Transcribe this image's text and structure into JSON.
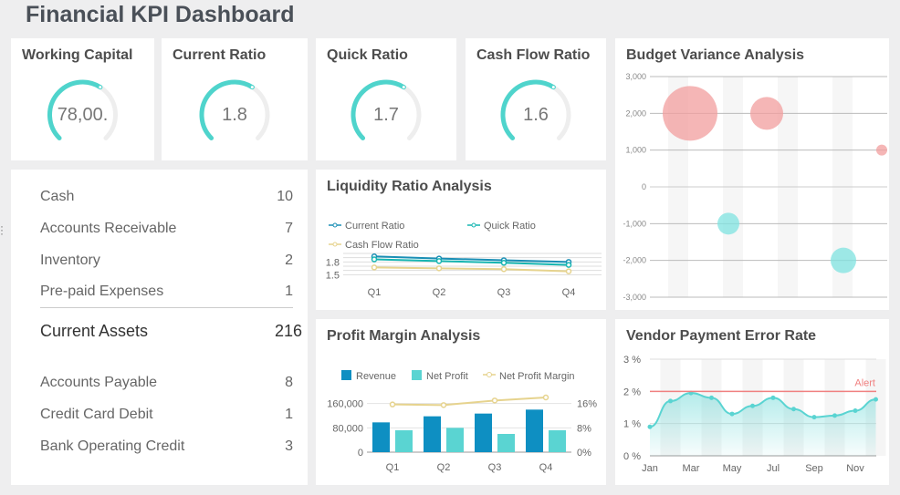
{
  "dashboard": {
    "title": "Financial KPI Dashboard"
  },
  "gauges": [
    {
      "title": "Working Capital",
      "value": "78,00.",
      "fill": 0.62
    },
    {
      "title": "Current Ratio",
      "value": "1.8",
      "fill": 0.62
    },
    {
      "title": "Quick Ratio",
      "value": "1.7",
      "fill": 0.62
    },
    {
      "title": "Cash Flow Ratio",
      "value": "1.6",
      "fill": 0.62
    }
  ],
  "balance_sheet": {
    "rows": [
      {
        "label": "Cash",
        "value": "10"
      },
      {
        "label": "Accounts Receivable",
        "value": "7"
      },
      {
        "label": "Inventory",
        "value": "2"
      },
      {
        "label": "Pre-paid Expenses",
        "value": "1"
      },
      {
        "label": "Current Assets",
        "value": "216"
      },
      {
        "label": "Accounts Payable",
        "value": "8"
      },
      {
        "label": "Credit Card Debit",
        "value": "1"
      },
      {
        "label": "Bank Operating Credit",
        "value": "3"
      }
    ]
  },
  "colors": {
    "teal": "#4fd4cc",
    "gauge_track": "#eeeeee",
    "blue": "#0e8fc2",
    "light_teal": "#5ad4d2",
    "yellow": "#e6d38e",
    "pink": "#f29d9d",
    "alert": "#f08080"
  },
  "chart_data": [
    {
      "type": "line",
      "title": "Liquidity Ratio Analysis",
      "categories": [
        "Q1",
        "Q2",
        "Q3",
        "Q4"
      ],
      "series": [
        {
          "name": "Current Ratio",
          "values": [
            1.93,
            1.88,
            1.84,
            1.8
          ]
        },
        {
          "name": "Quick Ratio",
          "values": [
            1.86,
            1.82,
            1.78,
            1.73
          ]
        },
        {
          "name": "Cash Flow Ratio",
          "values": [
            1.67,
            1.65,
            1.63,
            1.58
          ]
        }
      ],
      "yticks": [
        "1.8",
        "1.5"
      ],
      "ylim": [
        1.4,
        2.0
      ]
    },
    {
      "type": "bar",
      "title": "Profit Margin Analysis",
      "categories": [
        "Q1",
        "Q2",
        "Q3",
        "Q4"
      ],
      "series": [
        {
          "name": "Revenue",
          "values": [
            98000,
            118000,
            127000,
            140000
          ]
        },
        {
          "name": "Net Profit",
          "values": [
            72000,
            80000,
            60000,
            72000
          ]
        },
        {
          "name": "Net Profit Margin",
          "values": [
            15.7,
            15.5,
            17.0,
            18.0
          ]
        }
      ],
      "yticks_left": [
        "160,000",
        "80,000",
        "0"
      ],
      "yticks_right": [
        "16%",
        "8%",
        "0%"
      ],
      "ylim": [
        0,
        180000
      ],
      "ylim_right": [
        0,
        18
      ]
    },
    {
      "type": "scatter",
      "title": "Budget Variance Analysis",
      "yticks": [
        "3,000",
        "2,000",
        "1,000",
        "0",
        "-1,000",
        "-2,000",
        "-3,000"
      ],
      "ylim": [
        -3000,
        3000
      ],
      "points": [
        {
          "x": 1,
          "y": 2000,
          "size": 30,
          "color": "#f29d9d"
        },
        {
          "x": 3,
          "y": 2000,
          "size": 18,
          "color": "#f29d9d"
        },
        {
          "x": 6,
          "y": 1000,
          "size": 6,
          "color": "#f29d9d"
        },
        {
          "x": 2,
          "y": -1000,
          "size": 12,
          "color": "#7fe3e0"
        },
        {
          "x": 5,
          "y": -2000,
          "size": 14,
          "color": "#7fe3e0"
        }
      ]
    },
    {
      "type": "area",
      "title": "Vendor Payment Error Rate",
      "x": [
        "Jan",
        "Feb",
        "Mar",
        "Apr",
        "May",
        "Jun",
        "Jul",
        "Aug",
        "Sep",
        "Oct",
        "Nov",
        "Dec"
      ],
      "xticks": [
        "Jan",
        "Mar",
        "May",
        "Jul",
        "Sep",
        "Nov"
      ],
      "values": [
        0.9,
        1.7,
        1.95,
        1.8,
        1.3,
        1.55,
        1.8,
        1.45,
        1.2,
        1.25,
        1.4,
        1.75
      ],
      "yticks": [
        "3 %",
        "2 %",
        "1 %",
        "0 %"
      ],
      "ylim": [
        0,
        3
      ],
      "alert_value": 2,
      "alert_label": "Alert"
    }
  ]
}
